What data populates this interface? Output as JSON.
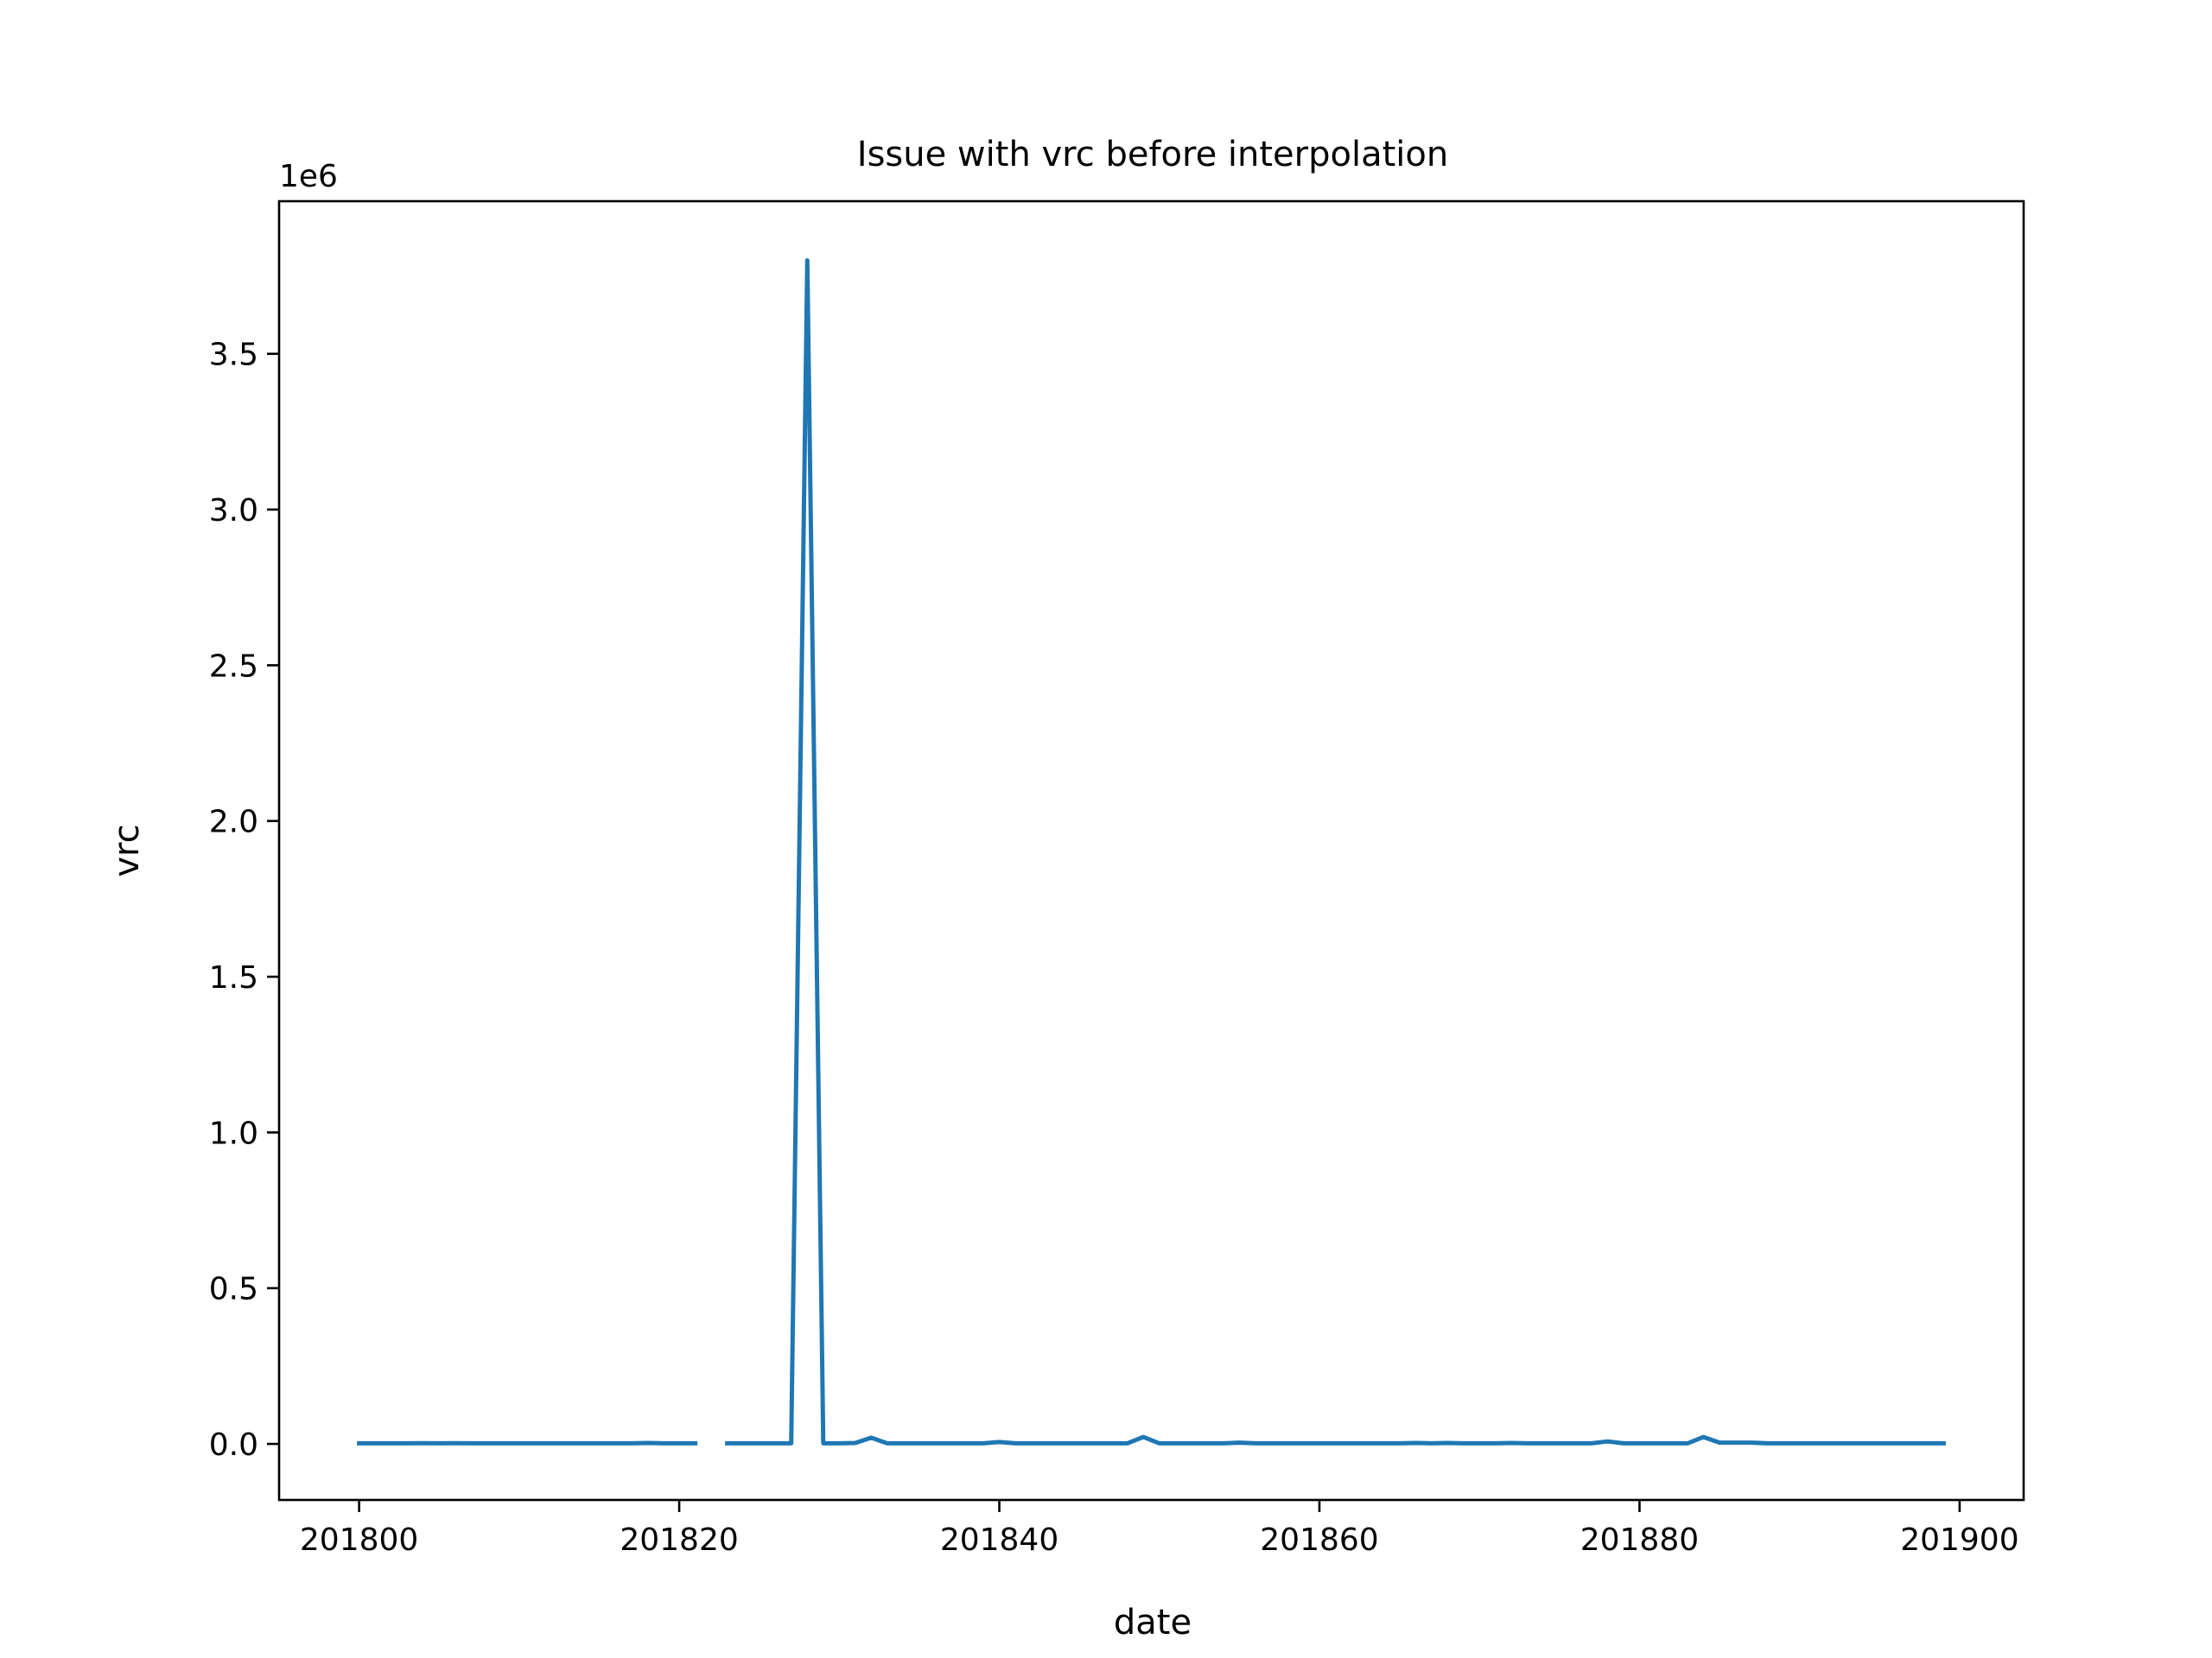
{
  "chart_data": {
    "type": "line",
    "title": "Issue with vrc before interpolation",
    "xlabel": "date",
    "ylabel": "vrc",
    "y_offset_label": "1e6",
    "xlim": [
      201795,
      201904
    ],
    "ylim": [
      -180000,
      3990000
    ],
    "x_ticks": [
      201800,
      201820,
      201840,
      201860,
      201880,
      201900
    ],
    "x_tick_labels": [
      "201800",
      "201820",
      "201840",
      "201860",
      "201880",
      "201900"
    ],
    "y_ticks": [
      0,
      500000,
      1000000,
      1500000,
      2000000,
      2500000,
      3000000,
      3500000
    ],
    "y_tick_labels": [
      "0.0",
      "0.5",
      "1.0",
      "1.5",
      "2.0",
      "2.5",
      "3.0",
      "3.5"
    ],
    "grid": false,
    "series": [
      {
        "color": "#1f77b4",
        "x": [
          201800,
          201801,
          201802,
          201803,
          201804,
          201805,
          201806,
          201807,
          201808,
          201809,
          201810,
          201811,
          201812,
          201813,
          201814,
          201815,
          201816,
          201817,
          201818,
          201819,
          201820,
          201821,
          201822,
          201823,
          201824,
          201825,
          201826,
          201827,
          201828,
          201829,
          201830,
          201831,
          201832,
          201833,
          201834,
          201835,
          201836,
          201837,
          201838,
          201839,
          201840,
          201841,
          201842,
          201843,
          201844,
          201845,
          201846,
          201847,
          201848,
          201849,
          201850,
          201851,
          201852,
          201853,
          201854,
          201855,
          201856,
          201857,
          201858,
          201859,
          201860,
          201861,
          201862,
          201863,
          201864,
          201865,
          201866,
          201867,
          201868,
          201869,
          201870,
          201871,
          201872,
          201873,
          201874,
          201875,
          201876,
          201877,
          201878,
          201879,
          201880,
          201881,
          201882,
          201883,
          201884,
          201885,
          201886,
          201887,
          201888,
          201889,
          201890,
          201891,
          201892,
          201893,
          201894,
          201895,
          201896,
          201897,
          201898,
          201899
        ],
        "values": [
          2000,
          2000,
          2000,
          2000,
          2500,
          2000,
          2500,
          2000,
          2000,
          2000,
          2000,
          2000,
          2000,
          2000,
          2000,
          2000,
          2000,
          2000,
          3000,
          2000,
          2000,
          2000,
          null,
          2000,
          2000,
          2000,
          2000,
          2000,
          3800000,
          2000,
          2000,
          3000,
          20000,
          2000,
          2000,
          2000,
          2000,
          2000,
          2000,
          2000,
          6000,
          2000,
          2000,
          2000,
          2000,
          2000,
          2000,
          2000,
          2000,
          22000,
          2000,
          2000,
          2000,
          2000,
          2000,
          4000,
          2000,
          2000,
          2000,
          2000,
          2000,
          2000,
          2000,
          2000,
          2000,
          2000,
          3000,
          2000,
          3000,
          2000,
          2000,
          2000,
          3000,
          2000,
          2000,
          2000,
          2000,
          2000,
          8000,
          2000,
          2000,
          2000,
          2000,
          2000,
          22000,
          4000,
          4000,
          4000,
          2000,
          2000,
          2000,
          2000,
          2000,
          2000,
          2000,
          2000,
          2000,
          2000,
          2000,
          2000
        ]
      }
    ]
  }
}
